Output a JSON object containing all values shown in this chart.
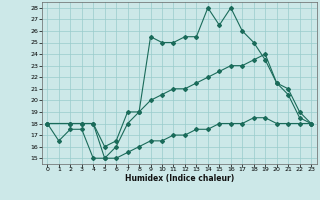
{
  "title": "",
  "xlabel": "Humidex (Indice chaleur)",
  "background_color": "#cce8e8",
  "grid_color": "#99cccc",
  "line_color": "#1a6b5a",
  "xlim": [
    -0.5,
    23.5
  ],
  "ylim": [
    14.5,
    28.5
  ],
  "xticks": [
    0,
    1,
    2,
    3,
    4,
    5,
    6,
    7,
    8,
    9,
    10,
    11,
    12,
    13,
    14,
    15,
    16,
    17,
    18,
    19,
    20,
    21,
    22,
    23
  ],
  "yticks": [
    15,
    16,
    17,
    18,
    19,
    20,
    21,
    22,
    23,
    24,
    25,
    26,
    27,
    28
  ],
  "line1_x": [
    0,
    1,
    2,
    3,
    4,
    5,
    6,
    7,
    8,
    9,
    10,
    11,
    12,
    13,
    14,
    15,
    16,
    17,
    18,
    19,
    20,
    21,
    22,
    23
  ],
  "line1_y": [
    18,
    16.5,
    17.5,
    17.5,
    15,
    15,
    16,
    18,
    19,
    25.5,
    25,
    25,
    25.5,
    25.5,
    28,
    26.5,
    28,
    26,
    25,
    23.5,
    21.5,
    20.5,
    18.5,
    18
  ],
  "line2_x": [
    0,
    2,
    3,
    4,
    5,
    6,
    7,
    8,
    9,
    10,
    11,
    12,
    13,
    14,
    15,
    16,
    17,
    18,
    19,
    20,
    21,
    22,
    23
  ],
  "line2_y": [
    18,
    18,
    18,
    18,
    16,
    16.5,
    19,
    19,
    20,
    20.5,
    21,
    21,
    21.5,
    22,
    22.5,
    23,
    23,
    23.5,
    24,
    21.5,
    21,
    19,
    18
  ],
  "line3_x": [
    0,
    2,
    3,
    4,
    5,
    6,
    7,
    8,
    9,
    10,
    11,
    12,
    13,
    14,
    15,
    16,
    17,
    18,
    19,
    20,
    21,
    22,
    23
  ],
  "line3_y": [
    18,
    18,
    18,
    18,
    15,
    15,
    15.5,
    16,
    16.5,
    16.5,
    17,
    17,
    17.5,
    17.5,
    18,
    18,
    18,
    18.5,
    18.5,
    18,
    18,
    18,
    18
  ]
}
